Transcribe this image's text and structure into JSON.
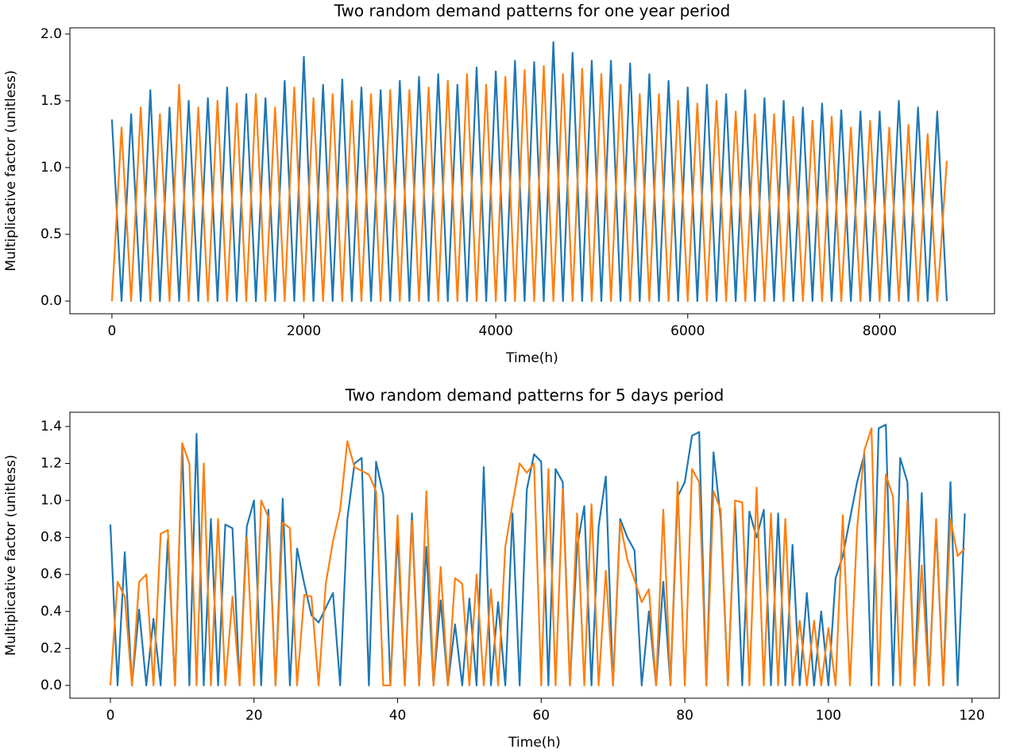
{
  "chart_data": [
    {
      "type": "line",
      "title": "Two random demand patterns for one year period",
      "xlabel": "Time(h)",
      "ylabel": "Multiplicative factor (unitless)",
      "x": [
        0,
        100,
        200,
        300,
        400,
        500,
        600,
        700,
        800,
        900,
        1000,
        1100,
        1200,
        1300,
        1400,
        1500,
        1600,
        1700,
        1800,
        1900,
        2000,
        2100,
        2200,
        2300,
        2400,
        2500,
        2600,
        2700,
        2800,
        2900,
        3000,
        3100,
        3200,
        3300,
        3400,
        3500,
        3600,
        3700,
        3800,
        3900,
        4000,
        4100,
        4200,
        4300,
        4400,
        4500,
        4600,
        4700,
        4800,
        4900,
        5000,
        5100,
        5200,
        5300,
        5400,
        5500,
        5600,
        5700,
        5800,
        5900,
        6000,
        6100,
        6200,
        6300,
        6400,
        6500,
        6600,
        6700,
        6800,
        6900,
        7000,
        7100,
        7200,
        7300,
        7400,
        7500,
        7600,
        7700,
        7800,
        7900,
        8000,
        8100,
        8200,
        8300,
        8400,
        8500,
        8600,
        8700
      ],
      "series": [
        {
          "color": "#1f77b4",
          "values": [
            1.36,
            0,
            1.4,
            0,
            1.58,
            0,
            1.45,
            0,
            1.5,
            0,
            1.52,
            0,
            1.6,
            0,
            1.55,
            0,
            1.52,
            0,
            1.65,
            0,
            1.83,
            0,
            1.62,
            0,
            1.66,
            0,
            1.6,
            0,
            1.58,
            0,
            1.65,
            0,
            1.68,
            0,
            1.7,
            0,
            1.62,
            0,
            1.75,
            0,
            1.72,
            0,
            1.8,
            0,
            1.79,
            0,
            1.94,
            0,
            1.86,
            0,
            1.8,
            0,
            1.8,
            0,
            1.78,
            0,
            1.7,
            0,
            1.65,
            0,
            1.6,
            0,
            1.62,
            0,
            1.55,
            0,
            1.58,
            0,
            1.52,
            0,
            1.5,
            0,
            1.45,
            0,
            1.48,
            0,
            1.43,
            0,
            1.42,
            0,
            1.42,
            0,
            1.5,
            0,
            1.45,
            0,
            1.42,
            0
          ]
        },
        {
          "color": "#ff7f0e",
          "values": [
            0,
            1.3,
            0,
            1.45,
            0,
            1.4,
            0,
            1.62,
            0,
            1.45,
            0,
            1.5,
            0,
            1.48,
            0,
            1.55,
            0,
            1.45,
            0,
            1.6,
            0,
            1.52,
            0,
            1.55,
            0,
            1.5,
            0,
            1.55,
            0,
            1.58,
            0,
            1.58,
            0,
            1.6,
            0,
            1.65,
            0,
            1.7,
            0,
            1.62,
            0,
            1.68,
            0,
            1.73,
            0,
            1.76,
            0,
            1.7,
            0,
            1.74,
            0,
            1.7,
            0,
            1.62,
            0,
            1.55,
            0,
            1.55,
            0,
            1.5,
            0,
            1.48,
            0,
            1.5,
            0,
            1.42,
            0,
            1.4,
            0,
            1.4,
            0,
            1.38,
            0,
            1.35,
            0,
            1.38,
            0,
            1.3,
            0,
            1.35,
            0,
            1.3,
            0,
            1.32,
            0,
            1.25,
            0,
            1.05
          ]
        }
      ],
      "xlim": [
        -438,
        9197
      ],
      "ylim": [
        -0.095,
        2.047
      ],
      "xticks": [
        0,
        2000,
        4000,
        6000,
        8000
      ],
      "yticks": [
        {
          "value": 0,
          "label": "0.0"
        },
        0.5,
        {
          "value": 1,
          "label": "1.0"
        },
        1.5,
        {
          "value": 2,
          "label": "2.0"
        }
      ]
    },
    {
      "type": "line",
      "title": "Two random demand patterns for 5 days period",
      "xlabel": "Time(h)",
      "ylabel": "Multiplicative factor (unitless)",
      "x": [
        0,
        1,
        2,
        3,
        4,
        5,
        6,
        7,
        8,
        9,
        10,
        11,
        12,
        13,
        14,
        15,
        16,
        17,
        18,
        19,
        20,
        21,
        22,
        23,
        24,
        25,
        26,
        27,
        28,
        29,
        30,
        31,
        32,
        33,
        34,
        35,
        36,
        37,
        38,
        39,
        40,
        41,
        42,
        43,
        44,
        45,
        46,
        47,
        48,
        49,
        50,
        51,
        52,
        53,
        54,
        55,
        56,
        57,
        58,
        59,
        60,
        61,
        62,
        63,
        64,
        65,
        66,
        67,
        68,
        69,
        70,
        71,
        72,
        73,
        74,
        75,
        76,
        77,
        78,
        79,
        80,
        81,
        82,
        83,
        84,
        85,
        86,
        87,
        88,
        89,
        90,
        91,
        92,
        93,
        94,
        95,
        96,
        97,
        98,
        99,
        100,
        101,
        102,
        103,
        104,
        105,
        106,
        107,
        108,
        109,
        110,
        111,
        112,
        113,
        114,
        115,
        116,
        117,
        118,
        119
      ],
      "series": [
        {
          "color": "#1f77b4",
          "values": [
            0.87,
            0,
            0.72,
            0,
            0.41,
            0,
            0.36,
            0,
            0.79,
            0,
            1.3,
            0,
            1.36,
            0,
            0.9,
            0,
            0.87,
            0.85,
            0,
            0.86,
            1.0,
            0,
            0.95,
            0,
            1.01,
            0,
            0.74,
            0.55,
            0.38,
            0.34,
            0.42,
            0.5,
            0,
            0.9,
            1.2,
            1.23,
            0,
            1.21,
            1.03,
            0,
            0.82,
            0,
            0.93,
            0,
            0.75,
            0,
            0.46,
            0,
            0.33,
            0,
            0.47,
            0,
            1.18,
            0,
            0.45,
            0,
            0.93,
            0,
            1.06,
            1.25,
            1.21,
            0,
            1.17,
            1.1,
            0,
            0.75,
            0.97,
            0,
            0.86,
            1.13,
            0,
            0.9,
            0.8,
            0.73,
            0,
            0.4,
            0,
            0.56,
            0,
            1.02,
            1.1,
            1.35,
            1.37,
            0,
            1.26,
            0.9,
            0,
            0.97,
            0,
            0.94,
            0.8,
            0.95,
            0,
            0.93,
            0,
            0.76,
            0,
            0.5,
            0,
            0.4,
            0,
            0.58,
            0.7,
            0.9,
            1.1,
            1.25,
            0,
            1.39,
            1.41,
            0,
            1.23,
            1.1,
            0,
            1.04,
            0,
            0.86,
            0,
            1.1,
            0,
            0.93
          ]
        },
        {
          "color": "#ff7f0e",
          "values": [
            0,
            0.56,
            0.48,
            0,
            0.56,
            0.6,
            0,
            0.82,
            0.84,
            0,
            1.31,
            1.2,
            0,
            1.2,
            0,
            0.9,
            0,
            0.48,
            0,
            0.8,
            0,
            1.0,
            0.91,
            0,
            0.88,
            0.85,
            0,
            0.49,
            0.48,
            0,
            0.55,
            0.78,
            0.95,
            1.32,
            1.18,
            1.16,
            1.14,
            1.05,
            0,
            0,
            0.92,
            0,
            0.89,
            0,
            1.05,
            0,
            0.64,
            0,
            0.58,
            0.55,
            0,
            0.6,
            0,
            0.52,
            0,
            0.75,
            0.98,
            1.2,
            1.15,
            1.2,
            0,
            1.17,
            0,
            1.06,
            0,
            0.93,
            0,
            0.98,
            0,
            0.62,
            0,
            0.88,
            0.68,
            0.57,
            0.45,
            0.52,
            0,
            0.95,
            0,
            1.1,
            0,
            1.17,
            1.1,
            0,
            1.05,
            0.95,
            0,
            1.0,
            0.99,
            0,
            1.07,
            0,
            0.93,
            0,
            0.9,
            0,
            0.35,
            0,
            0.35,
            0,
            0.31,
            0,
            0.92,
            0,
            0.85,
            1.27,
            1.39,
            0,
            1.14,
            1.02,
            0,
            1.0,
            0,
            0.65,
            0,
            0.9,
            0,
            0.9,
            0.7,
            0.74
          ]
        }
      ],
      "xlim": [
        -5.64,
        123.8
      ],
      "ylim": [
        -0.069,
        1.477
      ],
      "xticks": [
        0,
        20,
        40,
        60,
        80,
        100,
        120
      ],
      "yticks": [
        {
          "value": 0,
          "label": "0.0"
        },
        0.2,
        0.4,
        0.6,
        0.8,
        {
          "value": 1,
          "label": "1.0"
        },
        1.2,
        1.4
      ]
    }
  ]
}
